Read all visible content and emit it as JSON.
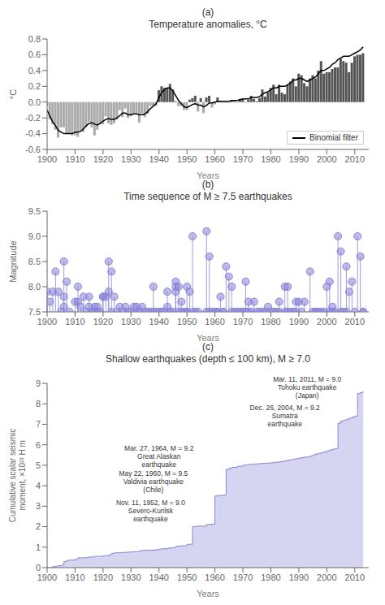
{
  "chart_data": [
    {
      "type": "bar",
      "subtitle": "(a)",
      "title": "Temperature anomalies, °C",
      "xlabel": "Years",
      "ylabel": "°C",
      "x": [
        1900,
        1901,
        1902,
        1903,
        1904,
        1905,
        1906,
        1907,
        1908,
        1909,
        1910,
        1911,
        1912,
        1913,
        1914,
        1915,
        1916,
        1917,
        1918,
        1919,
        1920,
        1921,
        1922,
        1923,
        1924,
        1925,
        1926,
        1927,
        1928,
        1929,
        1930,
        1931,
        1932,
        1933,
        1934,
        1935,
        1936,
        1937,
        1938,
        1939,
        1940,
        1941,
        1942,
        1943,
        1944,
        1945,
        1946,
        1947,
        1948,
        1949,
        1950,
        1951,
        1952,
        1953,
        1954,
        1955,
        1956,
        1957,
        1958,
        1959,
        1960,
        1961,
        1962,
        1963,
        1964,
        1965,
        1966,
        1967,
        1968,
        1969,
        1970,
        1971,
        1972,
        1973,
        1974,
        1975,
        1976,
        1977,
        1978,
        1979,
        1980,
        1981,
        1982,
        1983,
        1984,
        1985,
        1986,
        1987,
        1988,
        1989,
        1990,
        1991,
        1992,
        1993,
        1994,
        1995,
        1996,
        1997,
        1998,
        1999,
        2000,
        2001,
        2002,
        2003,
        2004,
        2005,
        2006,
        2007,
        2008,
        2009,
        2010,
        2011,
        2012,
        2013
      ],
      "series": [
        {
          "type": "bar",
          "values": [
            -0.05,
            -0.22,
            -0.28,
            -0.35,
            -0.45,
            -0.32,
            -0.32,
            -0.4,
            -0.4,
            -0.42,
            -0.42,
            -0.44,
            -0.36,
            -0.38,
            -0.32,
            -0.25,
            -0.32,
            -0.42,
            -0.35,
            -0.28,
            -0.28,
            -0.18,
            -0.27,
            -0.29,
            -0.27,
            -0.22,
            -0.1,
            -0.19,
            -0.08,
            -0.2,
            -0.18,
            -0.15,
            -0.14,
            -0.26,
            -0.14,
            -0.19,
            -0.15,
            -0.05,
            -0.05,
            -0.05,
            0.15,
            0.2,
            0.18,
            0.18,
            0.23,
            0.16,
            0.01,
            -0.05,
            -0.05,
            -0.1,
            -0.1,
            0.03,
            0.05,
            0.08,
            -0.12,
            0.05,
            -0.14,
            0.06,
            0.08,
            -0.07,
            -0.03,
            0.06,
            0.01,
            -0.01,
            -0.01,
            -0.01,
            0.02,
            0.01,
            -0.01,
            0.04,
            0.04,
            -0.01,
            0.03,
            0.08,
            0.04,
            0.01,
            0.05,
            0.16,
            0.07,
            0.12,
            0.18,
            0.22,
            0.1,
            0.22,
            0.12,
            0.1,
            0.22,
            0.26,
            0.3,
            0.2,
            0.36,
            0.34,
            0.24,
            0.2,
            0.3,
            0.34,
            0.3,
            0.4,
            0.52,
            0.36,
            0.38,
            0.38,
            0.42,
            0.44,
            0.44,
            0.55,
            0.52,
            0.5,
            0.38,
            0.5,
            0.58,
            0.6,
            0.6,
            0.62
          ],
          "colors": [
            "#aaaaaa",
            "#aaaaaa",
            "#aaaaaa",
            "#aaaaaa",
            "#aaaaaa",
            "#aaaaaa",
            "#aaaaaa",
            "#aaaaaa",
            "#aaaaaa",
            "#aaaaaa",
            "#aaaaaa",
            "#aaaaaa",
            "#aaaaaa",
            "#aaaaaa",
            "#aaaaaa",
            "#aaaaaa",
            "#aaaaaa",
            "#aaaaaa",
            "#aaaaaa",
            "#aaaaaa",
            "#aaaaaa",
            "#aaaaaa",
            "#aaaaaa",
            "#aaaaaa",
            "#aaaaaa",
            "#aaaaaa",
            "#aaaaaa",
            "#aaaaaa",
            "#aaaaaa",
            "#aaaaaa",
            "#aaaaaa",
            "#aaaaaa",
            "#aaaaaa",
            "#aaaaaa",
            "#aaaaaa",
            "#aaaaaa",
            "#aaaaaa",
            "#aaaaaa",
            "#aaaaaa",
            "#aaaaaa",
            "#555555",
            "#555555",
            "#555555",
            "#555555",
            "#555555",
            "#555555",
            "#555555",
            "#aaaaaa",
            "#aaaaaa",
            "#aaaaaa",
            "#aaaaaa",
            "#555555",
            "#555555",
            "#555555",
            "#aaaaaa",
            "#555555",
            "#aaaaaa",
            "#555555",
            "#555555",
            "#aaaaaa",
            "#aaaaaa",
            "#555555",
            "#555555",
            "#aaaaaa",
            "#aaaaaa",
            "#aaaaaa",
            "#555555",
            "#555555",
            "#aaaaaa",
            "#555555",
            "#555555",
            "#aaaaaa",
            "#555555",
            "#555555",
            "#555555",
            "#555555",
            "#555555",
            "#555555",
            "#555555",
            "#555555",
            "#555555",
            "#555555",
            "#555555",
            "#555555",
            "#555555",
            "#555555",
            "#555555",
            "#555555",
            "#555555",
            "#555555",
            "#555555",
            "#555555",
            "#555555",
            "#555555",
            "#555555",
            "#555555",
            "#555555",
            "#555555",
            "#555555",
            "#555555",
            "#555555",
            "#555555",
            "#555555",
            "#555555",
            "#555555",
            "#555555",
            "#555555",
            "#555555",
            "#555555",
            "#555555",
            "#555555",
            "#555555",
            "#555555",
            "#555555"
          ]
        },
        {
          "type": "line",
          "name": "Binomial filter",
          "color": "#000000",
          "values": [
            -0.1,
            -0.18,
            -0.25,
            -0.3,
            -0.36,
            -0.38,
            -0.4,
            -0.4,
            -0.4,
            -0.4,
            -0.38,
            -0.38,
            -0.37,
            -0.34,
            -0.3,
            -0.27,
            -0.26,
            -0.28,
            -0.29,
            -0.27,
            -0.24,
            -0.22,
            -0.21,
            -0.22,
            -0.22,
            -0.2,
            -0.17,
            -0.14,
            -0.14,
            -0.16,
            -0.16,
            -0.15,
            -0.15,
            -0.16,
            -0.16,
            -0.15,
            -0.12,
            -0.08,
            -0.05,
            -0.02,
            0.06,
            0.12,
            0.16,
            0.18,
            0.18,
            0.14,
            0.08,
            0.02,
            -0.02,
            -0.06,
            -0.07,
            -0.05,
            -0.03,
            -0.02,
            -0.04,
            -0.04,
            -0.06,
            -0.04,
            -0.01,
            -0.01,
            0.0,
            0.01,
            0.01,
            0.01,
            0.01,
            0.01,
            0.02,
            0.02,
            0.02,
            0.03,
            0.04,
            0.04,
            0.04,
            0.06,
            0.06,
            0.06,
            0.07,
            0.1,
            0.12,
            0.13,
            0.16,
            0.18,
            0.18,
            0.2,
            0.2,
            0.2,
            0.22,
            0.24,
            0.28,
            0.28,
            0.3,
            0.3,
            0.28,
            0.26,
            0.28,
            0.3,
            0.32,
            0.36,
            0.4,
            0.4,
            0.42,
            0.44,
            0.48,
            0.5,
            0.54,
            0.56,
            0.58,
            0.58,
            0.58,
            0.6,
            0.62,
            0.64,
            0.66,
            0.7
          ]
        }
      ],
      "xlim": [
        1900,
        2015
      ],
      "xticks": [
        1900,
        1910,
        1920,
        1930,
        1940,
        1950,
        1960,
        1970,
        1980,
        1990,
        2000,
        2010
      ],
      "ylim": [
        -0.6,
        0.8
      ],
      "yticks": [
        -0.6,
        -0.4,
        -0.2,
        {
          "value": 0,
          "label": "0.0"
        },
        0.2,
        0.4,
        0.6,
        0.8
      ],
      "legend": "lower right",
      "grid": false
    },
    {
      "type": "stem",
      "subtitle": "(b)",
      "title": "Time sequence of M ≥ 7.5 earthquakes",
      "xlabel": "Years",
      "ylabel": "Magnitude",
      "x": [
        1900,
        1901,
        1902,
        1903,
        1904,
        1905,
        1906,
        1906,
        1906,
        1907,
        1908,
        1910,
        1911,
        1911,
        1912,
        1913,
        1914,
        1915,
        1915,
        1916,
        1917,
        1917,
        1918,
        1918,
        1919,
        1920,
        1920,
        1921,
        1922,
        1922,
        1923,
        1923,
        1924,
        1925,
        1926,
        1927,
        1928,
        1929,
        1930,
        1931,
        1932,
        1933,
        1933,
        1934,
        1935,
        1936,
        1937,
        1938,
        1938,
        1939,
        1940,
        1941,
        1942,
        1943,
        1943,
        1944,
        1945,
        1946,
        1946,
        1946,
        1947,
        1947,
        1948,
        1948,
        1949,
        1950,
        1950,
        1950,
        1951,
        1952,
        1952,
        1953,
        1954,
        1957,
        1957,
        1958,
        1958,
        1959,
        1960,
        1961,
        1961,
        1962,
        1963,
        1963,
        1964,
        1965,
        1966,
        1966,
        1967,
        1968,
        1969,
        1970,
        1971,
        1971,
        1972,
        1972,
        1973,
        1974,
        1975,
        1976,
        1977,
        1978,
        1979,
        1980,
        1981,
        1982,
        1983,
        1983,
        1985,
        1985,
        1986,
        1986,
        1987,
        1988,
        1989,
        1989,
        1990,
        1991,
        1992,
        1994,
        1995,
        1996,
        1996,
        1997,
        1998,
        1999,
        2000,
        2001,
        2001,
        2002,
        2002,
        2003,
        2004,
        2005,
        2005,
        2006,
        2007,
        2007,
        2008,
        2009,
        2010,
        2011,
        2012,
        2013,
        2013
      ],
      "values": [
        7.9,
        7.7,
        7.9,
        8.3,
        7.9,
        7.5,
        8.5,
        7.6,
        7.8,
        8.1,
        7.5,
        7.7,
        8.0,
        7.7,
        7.6,
        7.8,
        7.5,
        7.8,
        7.6,
        7.5,
        7.6,
        7.5,
        7.5,
        7.6,
        7.5,
        7.8,
        7.8,
        7.8,
        7.9,
        8.5,
        7.5,
        8.3,
        7.8,
        7.5,
        7.6,
        7.5,
        7.6,
        7.5,
        7.5,
        7.6,
        7.6,
        7.5,
        7.5,
        7.6,
        7.5,
        7.5,
        7.5,
        7.5,
        8.0,
        7.5,
        7.5,
        7.5,
        7.5,
        7.9,
        7.6,
        7.5,
        7.5,
        8.1,
        7.9,
        8.0,
        7.5,
        8.0,
        7.5,
        7.7,
        7.5,
        7.5,
        8.0,
        7.5,
        7.9,
        9.0,
        7.5,
        7.5,
        7.5,
        9.1,
        7.5,
        8.6,
        7.5,
        7.5,
        7.5,
        7.5,
        7.5,
        7.8,
        7.5,
        7.5,
        8.4,
        8.2,
        7.5,
        8.0,
        7.5,
        7.5,
        7.5,
        7.5,
        8.1,
        7.5,
        7.7,
        7.5,
        7.5,
        7.7,
        7.5,
        7.5,
        7.5,
        7.5,
        7.6,
        7.5,
        7.5,
        7.5,
        7.5,
        7.7,
        8.0,
        7.5,
        7.5,
        8.0,
        7.5,
        7.5,
        7.7,
        7.5,
        7.7,
        7.5,
        7.7,
        8.3,
        7.5,
        7.5,
        7.5,
        7.5,
        7.5,
        7.5,
        8.0,
        7.5,
        8.1,
        7.5,
        7.6,
        7.5,
        9.0,
        8.7,
        7.5,
        7.5,
        8.4,
        7.5,
        7.9,
        8.1,
        7.5,
        9.0,
        8.6,
        7.5,
        7.5
      ],
      "color": "#8884d8",
      "marker": "o",
      "xlim": [
        1900,
        2015
      ],
      "xticks": [
        1900,
        1910,
        1920,
        1930,
        1940,
        1950,
        1960,
        1970,
        1980,
        1990,
        2000,
        2010
      ],
      "ylim": [
        7.5,
        9.5
      ],
      "yticks": [
        7.5,
        {
          "value": 8,
          "label": "8.0"
        },
        8.5,
        {
          "value": 9,
          "label": "9.0"
        },
        9.5
      ],
      "grid": false
    },
    {
      "type": "area",
      "line_style": "step",
      "subtitle": "(c)",
      "title": "Shallow earthquakes (depth ≤ 100 km), M ≥ 7.0",
      "xlabel": "Years",
      "ylabel": "Cumulative scalar seismic\nmoment, ×10²³ H m",
      "x": [
        1900,
        1902,
        1903,
        1904,
        1905,
        1906,
        1907,
        1908,
        1910,
        1911,
        1911,
        1914,
        1915,
        1917,
        1920,
        1922,
        1923,
        1924,
        1925,
        1926,
        1928,
        1929,
        1930,
        1932,
        1933,
        1934,
        1938,
        1940,
        1941,
        1943,
        1944,
        1946,
        1946,
        1948,
        1950,
        1950,
        1950,
        1952,
        1953,
        1954,
        1957,
        1957,
        1958,
        1960,
        1961,
        1963,
        1964,
        1964,
        1965,
        1966,
        1968,
        1970,
        1971,
        1972,
        1973,
        1974,
        1975,
        1976,
        1977,
        1978,
        1979,
        1980,
        1981,
        1982,
        1983,
        1985,
        1986,
        1987,
        1988,
        1989,
        1990,
        1991,
        1992,
        1994,
        1995,
        1996,
        1997,
        1998,
        1999,
        2000,
        2001,
        2002,
        2003,
        2004,
        2004,
        2005,
        2006,
        2007,
        2008,
        2009,
        2010,
        2011,
        2012,
        2013
      ],
      "values": [
        0.0,
        0.05,
        0.07,
        0.1,
        0.12,
        0.3,
        0.35,
        0.37,
        0.4,
        0.44,
        0.48,
        0.5,
        0.52,
        0.55,
        0.58,
        0.62,
        0.7,
        0.72,
        0.73,
        0.74,
        0.75,
        0.76,
        0.77,
        0.78,
        0.82,
        0.85,
        0.87,
        0.9,
        0.92,
        0.95,
        0.97,
        1.0,
        1.05,
        1.07,
        1.08,
        1.12,
        1.14,
        2.0,
        2.02,
        2.03,
        2.06,
        2.1,
        2.12,
        3.5,
        3.52,
        3.55,
        3.58,
        4.8,
        4.85,
        4.9,
        4.95,
        5.0,
        5.02,
        5.04,
        5.05,
        5.06,
        5.07,
        5.08,
        5.09,
        5.1,
        5.11,
        5.12,
        5.14,
        5.15,
        5.18,
        5.22,
        5.25,
        5.27,
        5.3,
        5.32,
        5.35,
        5.37,
        5.4,
        5.45,
        5.5,
        5.55,
        5.58,
        5.62,
        5.65,
        5.7,
        5.75,
        5.78,
        5.82,
        5.85,
        7.05,
        7.15,
        7.2,
        7.25,
        7.3,
        7.35,
        7.4,
        8.5,
        8.55,
        8.6
      ],
      "color": "#8884d8",
      "annotations": [
        {
          "x": 1940,
          "y": 4.85,
          "text": "Mar. 27, 1964, M = 9.2\nGreat Alaskan\nearthquake"
        },
        {
          "x": 1938,
          "y": 3.6,
          "text": "May 22, 1960, M = 9.5\nValdivia earthquake\n(Chile)"
        },
        {
          "x": 1937,
          "y": 2.2,
          "text": "Nov. 11, 1952, M = 9.0\nSevero-Kurilsk\nearthquake"
        },
        {
          "x": 1985,
          "y": 6.8,
          "text": "Dec. 26, 2004, M = 9.2\nSumatra\nearthquake"
        },
        {
          "x": 1993,
          "y": 8.2,
          "text": "Mar. 11, 2011, M = 9.0\nTohoku earthquake\n(Japan)"
        }
      ],
      "xlim": [
        1900,
        2015
      ],
      "xticks": [
        1900,
        1910,
        1920,
        1930,
        1940,
        1950,
        1960,
        1970,
        1980,
        1990,
        2000,
        2010
      ],
      "ylim": [
        0,
        9
      ],
      "yticks": [
        0,
        1,
        2,
        3,
        4,
        5,
        6,
        7,
        8,
        9
      ],
      "grid": false
    }
  ]
}
